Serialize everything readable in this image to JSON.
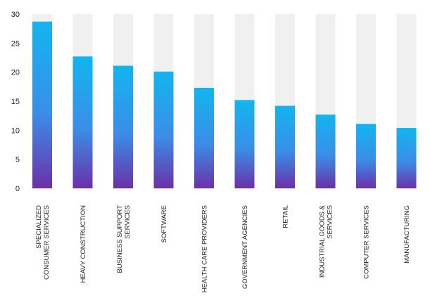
{
  "chart_data": {
    "type": "bar",
    "title": "",
    "xlabel": "",
    "ylabel": "",
    "ylim": [
      0,
      30
    ],
    "yticks": [
      0,
      5,
      10,
      15,
      20,
      25,
      30
    ],
    "grid": false,
    "categories": [
      [
        "SPECIALIZED",
        "CONSUMER SERVICES"
      ],
      [
        "HEAVY CONSTRUCTION"
      ],
      [
        "BUSINESS SUPPORT",
        "SERVICES"
      ],
      [
        "SOFTWARE"
      ],
      [
        "HEALTH CARE PROVIDERS"
      ],
      [
        "GOVERNMENT AGENCIES"
      ],
      [
        "RETAIL"
      ],
      [
        "INDUSTRIAL GOODS &",
        "SERVICES"
      ],
      [
        "COMPUTER SERVICES"
      ],
      [
        "MANUFACTURING"
      ]
    ],
    "values": [
      28.7,
      22.7,
      21.1,
      20.1,
      17.3,
      15.2,
      14.2,
      12.7,
      11.1,
      10.4
    ],
    "colors": {
      "background_bar": "#f0f0f0",
      "gradient_top": "#12b5ef",
      "gradient_mid": "#3a8ee8",
      "gradient_bottom": "#6c30a8",
      "text": "#222222"
    }
  }
}
